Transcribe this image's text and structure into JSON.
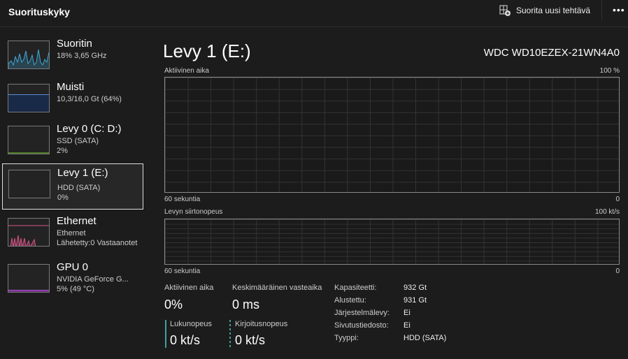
{
  "header": {
    "title": "Suorituskyky",
    "run_task": "Suorita uusi tehtävä",
    "more": "•••"
  },
  "sidebar": {
    "items": [
      {
        "name": "Suoritin",
        "sub1": "18%  3,65 GHz",
        "color": "#3fa9d8"
      },
      {
        "name": "Muisti",
        "sub1": "10,3/16,0 Gt (64%)",
        "color": "#5b8fd6"
      },
      {
        "name": "Levy 0 (C: D:)",
        "sub1": "SSD (SATA)",
        "sub2": "2%",
        "color": "#7fb83a"
      },
      {
        "name": "Levy 1 (E:)",
        "sub1": "HDD (SATA)",
        "sub2": "0%",
        "color": "#7fb83a"
      },
      {
        "name": "Ethernet",
        "sub1": "Ethernet",
        "sub2": "Lähetetty:0 Vastaanotet",
        "color": "#d9558a"
      },
      {
        "name": "GPU 0",
        "sub1": "NVIDIA GeForce G...",
        "sub2": "5%  (49 °C)",
        "color": "#b455d9"
      }
    ]
  },
  "main": {
    "title": "Levy 1 (E:)",
    "model": "WDC WD10EZEX-21WN4A0",
    "graph1": {
      "label": "Aktiivinen aika",
      "max": "100 %",
      "time": "60 sekuntia",
      "min": "0"
    },
    "graph2": {
      "label": "Levyn siirtonopeus",
      "max": "100 kt/s",
      "time": "60 sekuntia",
      "min": "0"
    },
    "stats": {
      "active_label": "Aktiivinen aika",
      "active": "0%",
      "resp_label": "Keskimääräinen vasteaika",
      "resp": "0 ms",
      "read_label": "Lukunopeus",
      "read": "0 kt/s",
      "write_label": "Kirjoitusnopeus",
      "write": "0 kt/s"
    },
    "props": [
      {
        "k": "Kapasiteetti:",
        "v": "932 Gt"
      },
      {
        "k": "Alustettu:",
        "v": "931 Gt"
      },
      {
        "k": "Järjestelmälevy:",
        "v": "Ei"
      },
      {
        "k": "Sivutustiedosto:",
        "v": "Ei"
      },
      {
        "k": "Tyyppi:",
        "v": "HDD (SATA)"
      }
    ],
    "accent": "#3aa39a"
  }
}
